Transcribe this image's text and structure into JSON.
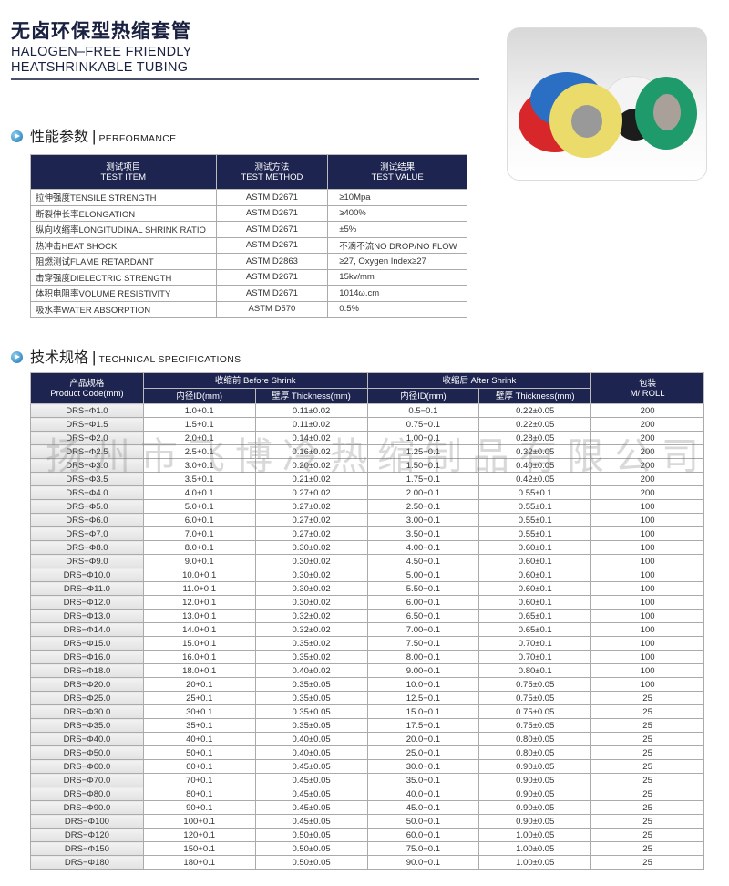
{
  "header": {
    "title_cn": "无卤环保型热缩套管",
    "title_en_line1": "HALOGEN–FREE FRIENDLY",
    "title_en_line2": "HEATSHRINKABLE TUBING"
  },
  "product_photo": {
    "icon": "heat-shrink-tubing-rolls-photo",
    "colors": [
      "#2a6fc4",
      "#d8272a",
      "#eadb6a",
      "#f4f4f4",
      "#1c1c1c",
      "#1f9a6a"
    ]
  },
  "performance": {
    "heading_cn": "性能参数",
    "heading_en": "PERFORMANCE",
    "icon": "arrow-circle-icon",
    "headers": [
      {
        "cn": "测试项目",
        "en": "TEST ITEM"
      },
      {
        "cn": "测试方法",
        "en": "TEST METHOD"
      },
      {
        "cn": "测试结果",
        "en": "TEST VALUE"
      }
    ],
    "rows": [
      [
        "拉伸强度TENSILE STRENGTH",
        "ASTM D2671",
        "≥10Mpa"
      ],
      [
        "断裂伸长率ELONGATION",
        "ASTM D2671",
        "≥400%"
      ],
      [
        "纵向收缩率LONGITUDINAL SHRINK RATIO",
        "ASTM D2671",
        "±5%"
      ],
      [
        "热冲击HEAT SHOCK",
        "ASTM D2671",
        "不滴不流NO DROP/NO FLOW"
      ],
      [
        "阻燃测试FLAME RETARDANT",
        "ASTM D2863",
        "≥27, Oxygen Index≥27"
      ],
      [
        "击穿强度DIELECTRIC STRENGTH",
        "ASTM D2671",
        "15kv/mm"
      ],
      [
        "体积电阻率VOLUME RESISTIVITY",
        "ASTM D2671",
        "1014ω.cm"
      ],
      [
        "吸水率WATER ABSORPTION",
        "ASTM D570",
        "0.5%"
      ]
    ]
  },
  "specs": {
    "heading_cn": "技术规格",
    "heading_en": "TECHNICAL SPECIFICATIONS",
    "header": {
      "product_cn": "产品规格",
      "product_en": "Product Code(mm)",
      "before": "收缩前 Before Shrink",
      "after": "收缩后 After Shrink",
      "pack_cn": "包装",
      "pack_en": "M/ ROLL",
      "id": "内径ID(mm)",
      "thickness": "壁厚 Thickness(mm)"
    },
    "watermark": "扬州市飞博冷热缩制品有限公司",
    "rows": [
      [
        "DRS−Φ1.0",
        "1.0+0.1",
        "0.11±0.02",
        "0.5−0.1",
        "0.22±0.05",
        "200"
      ],
      [
        "DRS−Φ1.5",
        "1.5+0.1",
        "0.11±0.02",
        "0.75−0.1",
        "0.22±0.05",
        "200"
      ],
      [
        "DRS−Φ2.0",
        "2.0+0.1",
        "0.14±0.02",
        "1.00−0.1",
        "0.28±0.05",
        "200"
      ],
      [
        "DRS−Φ2.5",
        "2.5+0.1",
        "0.16±0.02",
        "1.25−0.1",
        "0.32±0.05",
        "200"
      ],
      [
        "DRS−Φ3.0",
        "3.0+0.1",
        "0.20±0.02",
        "1.50−0.1",
        "0.40±0.05",
        "200"
      ],
      [
        "DRS−Φ3.5",
        "3.5+0.1",
        "0.21±0.02",
        "1.75−0.1",
        "0.42±0.05",
        "200"
      ],
      [
        "DRS−Φ4.0",
        "4.0+0.1",
        "0.27±0.02",
        "2.00−0.1",
        "0.55±0.1",
        "200"
      ],
      [
        "DRS−Φ5.0",
        "5.0+0.1",
        "0.27±0.02",
        "2.50−0.1",
        "0.55±0.1",
        "100"
      ],
      [
        "DRS−Φ6.0",
        "6.0+0.1",
        "0.27±0.02",
        "3.00−0.1",
        "0.55±0.1",
        "100"
      ],
      [
        "DRS−Φ7.0",
        "7.0+0.1",
        "0.27±0.02",
        "3.50−0.1",
        "0.55±0.1",
        "100"
      ],
      [
        "DRS−Φ8.0",
        "8.0+0.1",
        "0.30±0.02",
        "4.00−0.1",
        "0.60±0.1",
        "100"
      ],
      [
        "DRS−Φ9.0",
        "9.0+0.1",
        "0.30±0.02",
        "4.50−0.1",
        "0.60±0.1",
        "100"
      ],
      [
        "DRS−Φ10.0",
        "10.0+0.1",
        "0.30±0.02",
        "5.00−0.1",
        "0.60±0.1",
        "100"
      ],
      [
        "DRS−Φ11.0",
        "11.0+0.1",
        "0.30±0.02",
        "5.50−0.1",
        "0.60±0.1",
        "100"
      ],
      [
        "DRS−Φ12.0",
        "12.0+0.1",
        "0.30±0.02",
        "6.00−0.1",
        "0.60±0.1",
        "100"
      ],
      [
        "DRS−Φ13.0",
        "13.0+0.1",
        "0.32±0.02",
        "6.50−0.1",
        "0.65±0.1",
        "100"
      ],
      [
        "DRS−Φ14.0",
        "14.0+0.1",
        "0.32±0.02",
        "7.00−0.1",
        "0.65±0.1",
        "100"
      ],
      [
        "DRS−Φ15.0",
        "15.0+0.1",
        "0.35±0.02",
        "7.50−0.1",
        "0.70±0.1",
        "100"
      ],
      [
        "DRS−Φ16.0",
        "16.0+0.1",
        "0.35±0.02",
        "8.00−0.1",
        "0.70±0.1",
        "100"
      ],
      [
        "DRS−Φ18.0",
        "18.0+0.1",
        "0.40±0.02",
        "9.00−0.1",
        "0.80±0.1",
        "100"
      ],
      [
        "DRS−Φ20.0",
        "20+0.1",
        "0.35±0.05",
        "10.0−0.1",
        "0.75±0.05",
        "100"
      ],
      [
        "DRS−Φ25.0",
        "25+0.1",
        "0.35±0.05",
        "12.5−0.1",
        "0.75±0.05",
        "25"
      ],
      [
        "DRS−Φ30.0",
        "30+0.1",
        "0.35±0.05",
        "15.0−0.1",
        "0.75±0.05",
        "25"
      ],
      [
        "DRS−Φ35.0",
        "35+0.1",
        "0.35±0.05",
        "17.5−0.1",
        "0.75±0.05",
        "25"
      ],
      [
        "DRS−Φ40.0",
        "40+0.1",
        "0.40±0.05",
        "20.0−0.1",
        "0.80±0.05",
        "25"
      ],
      [
        "DRS−Φ50.0",
        "50+0.1",
        "0.40±0.05",
        "25.0−0.1",
        "0.80±0.05",
        "25"
      ],
      [
        "DRS−Φ60.0",
        "60+0.1",
        "0.45±0.05",
        "30.0−0.1",
        "0.90±0.05",
        "25"
      ],
      [
        "DRS−Φ70.0",
        "70+0.1",
        "0.45±0.05",
        "35.0−0.1",
        "0.90±0.05",
        "25"
      ],
      [
        "DRS−Φ80.0",
        "80+0.1",
        "0.45±0.05",
        "40.0−0.1",
        "0.90±0.05",
        "25"
      ],
      [
        "DRS−Φ90.0",
        "90+0.1",
        "0.45±0.05",
        "45.0−0.1",
        "0.90±0.05",
        "25"
      ],
      [
        "DRS−Φ100",
        "100+0.1",
        "0.45±0.05",
        "50.0−0.1",
        "0.90±0.05",
        "25"
      ],
      [
        "DRS−Φ120",
        "120+0.1",
        "0.50±0.05",
        "60.0−0.1",
        "1.00±0.05",
        "25"
      ],
      [
        "DRS−Φ150",
        "150+0.1",
        "0.50±0.05",
        "75.0−0.1",
        "1.00±0.05",
        "25"
      ],
      [
        "DRS−Φ180",
        "180+0.1",
        "0.50±0.05",
        "90.0−0.1",
        "1.00±0.05",
        "25"
      ]
    ]
  },
  "colors": {
    "header_bg": "#1d2450",
    "title": "#1b2140",
    "code_cell": "#e8e8e8"
  }
}
